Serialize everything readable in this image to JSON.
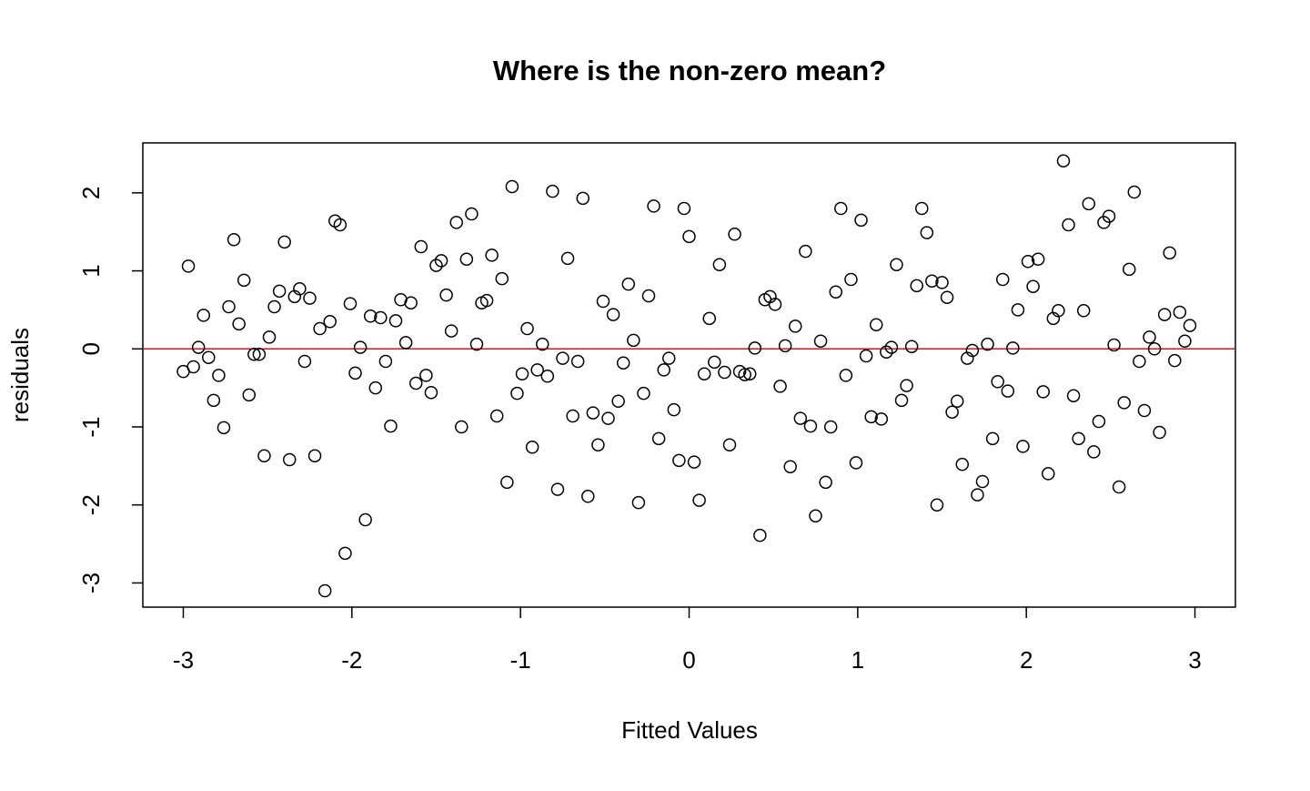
{
  "chart_data": {
    "type": "scatter",
    "title": "Where is the non-zero mean?",
    "x_label": "Fitted Values",
    "y_label": "residuals",
    "x": [
      -3.0,
      -2.97,
      -2.94,
      -2.91,
      -2.88,
      -2.85,
      -2.82,
      -2.79,
      -2.76,
      -2.73,
      -2.7,
      -2.67,
      -2.64,
      -2.61,
      -2.58,
      -2.55,
      -2.52,
      -2.49,
      -2.46,
      -2.43,
      -2.4,
      -2.37,
      -2.34,
      -2.31,
      -2.28,
      -2.25,
      -2.22,
      -2.19,
      -2.16,
      -2.13,
      -2.1,
      -2.07,
      -2.04,
      -2.01,
      -1.98,
      -1.95,
      -1.92,
      -1.89,
      -1.86,
      -1.83,
      -1.8,
      -1.77,
      -1.74,
      -1.71,
      -1.68,
      -1.65,
      -1.62,
      -1.59,
      -1.56,
      -1.53,
      -1.5,
      -1.47,
      -1.44,
      -1.41,
      -1.38,
      -1.35,
      -1.32,
      -1.29,
      -1.26,
      -1.23,
      -1.2,
      -1.17,
      -1.14,
      -1.11,
      -1.08,
      -1.05,
      -1.02,
      -0.99,
      -0.96,
      -0.93,
      -0.9,
      -0.87,
      -0.84,
      -0.81,
      -0.78,
      -0.75,
      -0.72,
      -0.69,
      -0.66,
      -0.63,
      -0.6,
      -0.57,
      -0.54,
      -0.51,
      -0.48,
      -0.45,
      -0.42,
      -0.39,
      -0.36,
      -0.33,
      -0.3,
      -0.27,
      -0.24,
      -0.21,
      -0.18,
      -0.15,
      -0.12,
      -0.09,
      -0.06,
      -0.03,
      0.0,
      0.03,
      0.06,
      0.09,
      0.12,
      0.15,
      0.18,
      0.21,
      0.24,
      0.27,
      0.3,
      0.33,
      0.36,
      0.39,
      0.42,
      0.45,
      0.48,
      0.51,
      0.54,
      0.57,
      0.6,
      0.63,
      0.66,
      0.69,
      0.72,
      0.75,
      0.78,
      0.81,
      0.84,
      0.87,
      0.9,
      0.93,
      0.96,
      0.99,
      1.02,
      1.05,
      1.08,
      1.11,
      1.14,
      1.17,
      1.2,
      1.23,
      1.26,
      1.29,
      1.32,
      1.35,
      1.38,
      1.41,
      1.44,
      1.47,
      1.5,
      1.53,
      1.56,
      1.59,
      1.62,
      1.65,
      1.68,
      1.71,
      1.74,
      1.77,
      1.8,
      1.83,
      1.86,
      1.89,
      1.92,
      1.95,
      1.98,
      2.01,
      2.04,
      2.07,
      2.1,
      2.13,
      2.16,
      2.19,
      2.22,
      2.25,
      2.28,
      2.31,
      2.34,
      2.37,
      2.4,
      2.43,
      2.46,
      2.49,
      2.52,
      2.55,
      2.58,
      2.61,
      2.64,
      2.67,
      2.7,
      2.73,
      2.76,
      2.79,
      2.82,
      2.85,
      2.88,
      2.91,
      2.94,
      2.97
    ],
    "series": [
      {
        "color": "#000000",
        "values": [
          -0.29,
          1.06,
          -0.23,
          0.02,
          0.43,
          -0.11,
          -0.66,
          -0.34,
          -1.01,
          0.54,
          1.4,
          0.32,
          0.88,
          -0.59,
          -0.07,
          -0.07,
          -1.37,
          0.15,
          0.54,
          0.74,
          1.37,
          -1.42,
          0.67,
          0.77,
          -0.16,
          0.65,
          -1.37,
          0.26,
          -3.1,
          0.35,
          1.64,
          1.59,
          -2.62,
          0.58,
          -0.31,
          0.02,
          -2.19,
          0.42,
          -0.5,
          0.4,
          -0.16,
          -0.99,
          0.36,
          0.63,
          0.08,
          0.59,
          -0.44,
          1.31,
          -0.34,
          -0.56,
          1.07,
          1.13,
          0.69,
          0.23,
          1.62,
          -1.0,
          1.15,
          1.73,
          0.06,
          0.59,
          0.62,
          1.2,
          -0.86,
          0.9,
          -1.71,
          2.08,
          -0.57,
          -0.32,
          0.26,
          -1.26,
          -0.27,
          0.06,
          -0.35,
          2.02,
          -1.8,
          -0.12,
          1.16,
          -0.86,
          -0.16,
          1.93,
          -1.89,
          -0.82,
          -1.23,
          0.61,
          -0.89,
          0.44,
          -0.67,
          -0.18,
          0.83,
          0.11,
          -1.97,
          -0.57,
          0.68,
          1.83,
          -1.15,
          -0.27,
          -0.12,
          -0.78,
          -1.43,
          1.8,
          1.44,
          -1.45,
          -1.94,
          -0.32,
          0.39,
          -0.17,
          1.08,
          -0.3,
          -1.23,
          1.47,
          -0.29,
          -0.33,
          -0.32,
          0.01,
          -2.39,
          0.63,
          0.67,
          0.57,
          -0.48,
          0.04,
          -1.51,
          0.29,
          -0.89,
          1.25,
          -0.99,
          -2.14,
          0.1,
          -1.71,
          -1.0,
          0.73,
          1.8,
          -0.34,
          0.89,
          -1.46,
          1.65,
          -0.09,
          -0.87,
          0.31,
          -0.9,
          -0.04,
          0.02,
          1.08,
          -0.66,
          -0.47,
          0.03,
          0.81,
          1.8,
          1.49,
          0.87,
          -2.0,
          0.85,
          0.66,
          -0.81,
          -0.67,
          -1.48,
          -0.12,
          -0.02,
          -1.87,
          -1.7,
          0.06,
          -1.15,
          -0.42,
          0.89,
          -0.54,
          0.01,
          0.5,
          -1.25,
          1.12,
          0.8,
          1.15,
          -0.55,
          -1.6,
          0.39,
          0.49,
          2.41,
          1.59,
          -0.6,
          -1.15,
          0.49,
          1.86,
          -1.32,
          -0.93,
          1.62,
          1.7,
          0.05,
          -1.77,
          -0.69,
          1.02,
          2.01,
          -0.16,
          -0.79,
          0.15,
          0.0,
          -1.07,
          0.44,
          1.23,
          -0.15,
          0.47,
          0.1,
          0.3
        ]
      }
    ],
    "hline": {
      "value": 0,
      "color": "#ff0000"
    },
    "xlim": [
      -3.24,
      3.24
    ],
    "xticks": [
      -3,
      -2,
      -1,
      0,
      1,
      2,
      3
    ],
    "ylim": [
      -3.31,
      2.64
    ],
    "yticks": [
      -3,
      -2,
      -1,
      0,
      1,
      2
    ]
  }
}
